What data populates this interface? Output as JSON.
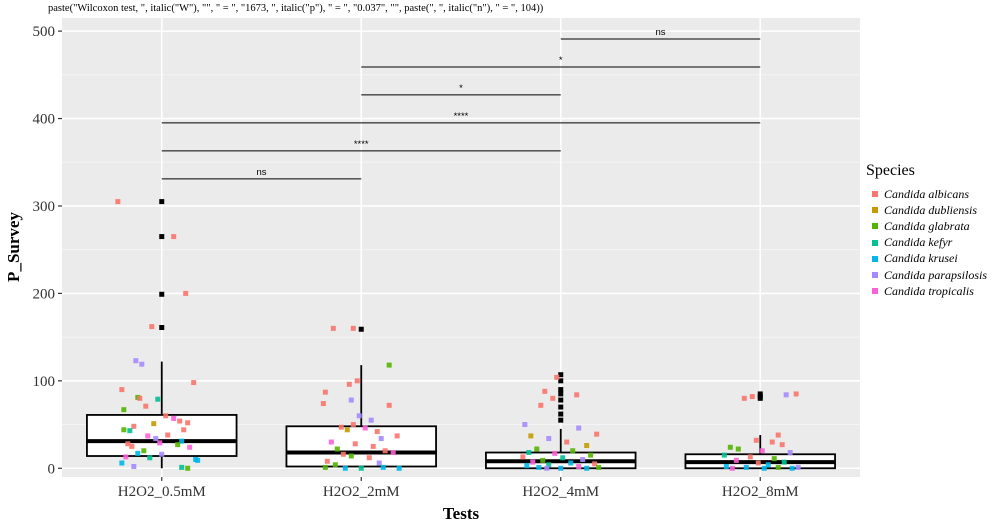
{
  "chart_data": {
    "type": "box",
    "subtitle": "paste(\"Wilcoxon test, \", italic(\"W\"), \"\", \" = \", \"1673, \", italic(\"p\"), \" = \", \"0.037\", \"\", paste(\", \", italic(\"n\"), \" = \", 104))",
    "xlabel": "Tests",
    "ylabel": "P_Survey",
    "ylim": [
      -10,
      515
    ],
    "yticks": [
      0,
      100,
      200,
      300,
      400,
      500
    ],
    "grid": true,
    "legend_placement": "right",
    "categories": [
      "H2O2_0.5mM",
      "H2O2_2mM",
      "H2O2_4mM",
      "H2O2_8mM"
    ],
    "boxes": [
      {
        "category": "H2O2_0.5mM",
        "min": 0,
        "q1": 14,
        "median": 31,
        "q3": 61,
        "max": 122,
        "outliers": [
          161,
          199,
          265,
          305
        ]
      },
      {
        "category": "H2O2_2mM",
        "min": 0,
        "q1": 2,
        "median": 18,
        "q3": 48,
        "max": 118,
        "outliers": [
          159
        ]
      },
      {
        "category": "H2O2_4mM",
        "min": 0,
        "q1": 0,
        "median": 8,
        "q3": 18,
        "max": 45,
        "outliers": [
          55,
          62,
          70,
          78,
          85,
          90,
          100,
          107
        ]
      },
      {
        "category": "H2O2_8mM",
        "min": 0,
        "q1": 0,
        "median": 7,
        "q3": 16,
        "max": 38,
        "outliers": [
          80,
          82,
          85
        ]
      }
    ],
    "legend": {
      "title": "Species",
      "entries": [
        {
          "name": "Candida albicans",
          "color": "#F8766D"
        },
        {
          "name": "Candida dubliensis",
          "color": "#C49A00"
        },
        {
          "name": "Candida glabrata",
          "color": "#53B400"
        },
        {
          "name": "Candida kefyr",
          "color": "#00C094"
        },
        {
          "name": "Candida krusei",
          "color": "#00B6EB"
        },
        {
          "name": "Candida parapsilosis",
          "color": "#A58AFF"
        },
        {
          "name": "Candida tropicalis",
          "color": "#FB61D7"
        }
      ]
    },
    "comparisons": [
      {
        "from": "H2O2_0.5mM",
        "to": "H2O2_2mM",
        "y": 331,
        "label": "ns"
      },
      {
        "from": "H2O2_0.5mM",
        "to": "H2O2_4mM",
        "y": 363,
        "label": "****"
      },
      {
        "from": "H2O2_0.5mM",
        "to": "H2O2_8mM",
        "y": 395,
        "label": "****"
      },
      {
        "from": "H2O2_2mM",
        "to": "H2O2_4mM",
        "y": 427,
        "label": "*"
      },
      {
        "from": "H2O2_2mM",
        "to": "H2O2_8mM",
        "y": 459,
        "label": "*"
      },
      {
        "from": "H2O2_4mM",
        "to": "H2O2_8mM",
        "y": 491,
        "label": "ns"
      }
    ],
    "points": [
      {
        "category": "H2O2_0.5mM",
        "jitter": -0.22,
        "y": 305,
        "species": 0
      },
      {
        "category": "H2O2_0.5mM",
        "jitter": 0.06,
        "y": 265,
        "species": 0
      },
      {
        "category": "H2O2_0.5mM",
        "jitter": 0.12,
        "y": 200,
        "species": 0
      },
      {
        "category": "H2O2_0.5mM",
        "jitter": -0.05,
        "y": 162,
        "species": 0
      },
      {
        "category": "H2O2_0.5mM",
        "jitter": -0.13,
        "y": 123,
        "species": 5
      },
      {
        "category": "H2O2_0.5mM",
        "jitter": -0.1,
        "y": 119,
        "species": 5
      },
      {
        "category": "H2O2_0.5mM",
        "jitter": 0.16,
        "y": 98,
        "species": 0
      },
      {
        "category": "H2O2_0.5mM",
        "jitter": -0.2,
        "y": 90,
        "species": 0
      },
      {
        "category": "H2O2_0.5mM",
        "jitter": -0.12,
        "y": 81,
        "species": 2
      },
      {
        "category": "H2O2_0.5mM",
        "jitter": -0.11,
        "y": 80,
        "species": 0
      },
      {
        "category": "H2O2_0.5mM",
        "jitter": -0.02,
        "y": 79,
        "species": 3
      },
      {
        "category": "H2O2_0.5mM",
        "jitter": -0.08,
        "y": 71,
        "species": 0
      },
      {
        "category": "H2O2_0.5mM",
        "jitter": -0.19,
        "y": 67,
        "species": 2
      },
      {
        "category": "H2O2_0.5mM",
        "jitter": 0.02,
        "y": 60,
        "species": 0
      },
      {
        "category": "H2O2_0.5mM",
        "jitter": 0.06,
        "y": 57,
        "species": 6
      },
      {
        "category": "H2O2_0.5mM",
        "jitter": 0.09,
        "y": 54,
        "species": 0
      },
      {
        "category": "H2O2_0.5mM",
        "jitter": 0.13,
        "y": 52,
        "species": 0
      },
      {
        "category": "H2O2_0.5mM",
        "jitter": -0.04,
        "y": 51,
        "species": 1
      },
      {
        "category": "H2O2_0.5mM",
        "jitter": -0.14,
        "y": 48,
        "species": 0
      },
      {
        "category": "H2O2_0.5mM",
        "jitter": -0.19,
        "y": 44,
        "species": 2
      },
      {
        "category": "H2O2_0.5mM",
        "jitter": -0.16,
        "y": 43,
        "species": 3
      },
      {
        "category": "H2O2_0.5mM",
        "jitter": 0.11,
        "y": 44,
        "species": 0
      },
      {
        "category": "H2O2_0.5mM",
        "jitter": 0.03,
        "y": 38,
        "species": 0
      },
      {
        "category": "H2O2_0.5mM",
        "jitter": -0.07,
        "y": 37,
        "species": 6
      },
      {
        "category": "H2O2_0.5mM",
        "jitter": -0.03,
        "y": 34,
        "species": 5
      },
      {
        "category": "H2O2_0.5mM",
        "jitter": 0.1,
        "y": 31,
        "species": 4
      },
      {
        "category": "H2O2_0.5mM",
        "jitter": -0.01,
        "y": 29,
        "species": 6
      },
      {
        "category": "H2O2_0.5mM",
        "jitter": -0.17,
        "y": 28,
        "species": 0
      },
      {
        "category": "H2O2_0.5mM",
        "jitter": 0.08,
        "y": 27,
        "species": 2
      },
      {
        "category": "H2O2_0.5mM",
        "jitter": -0.15,
        "y": 25,
        "species": 0
      },
      {
        "category": "H2O2_0.5mM",
        "jitter": 0.14,
        "y": 24,
        "species": 6
      },
      {
        "category": "H2O2_0.5mM",
        "jitter": -0.09,
        "y": 20,
        "species": 2
      },
      {
        "category": "H2O2_0.5mM",
        "jitter": -0.12,
        "y": 17,
        "species": 4
      },
      {
        "category": "H2O2_0.5mM",
        "jitter": 0.0,
        "y": 16,
        "species": 5
      },
      {
        "category": "H2O2_0.5mM",
        "jitter": -0.18,
        "y": 13,
        "species": 6
      },
      {
        "category": "H2O2_0.5mM",
        "jitter": -0.06,
        "y": 12,
        "species": 3
      },
      {
        "category": "H2O2_0.5mM",
        "jitter": 0.17,
        "y": 10,
        "species": 4
      },
      {
        "category": "H2O2_0.5mM",
        "jitter": 0.18,
        "y": 9,
        "species": 4
      },
      {
        "category": "H2O2_0.5mM",
        "jitter": -0.2,
        "y": 6,
        "species": 4
      },
      {
        "category": "H2O2_0.5mM",
        "jitter": -0.14,
        "y": 2,
        "species": 5
      },
      {
        "category": "H2O2_0.5mM",
        "jitter": 0.1,
        "y": 1,
        "species": 3
      },
      {
        "category": "H2O2_0.5mM",
        "jitter": 0.13,
        "y": 0,
        "species": 2
      },
      {
        "category": "H2O2_2mM",
        "jitter": -0.14,
        "y": 160,
        "species": 0
      },
      {
        "category": "H2O2_2mM",
        "jitter": -0.04,
        "y": 160,
        "species": 0
      },
      {
        "category": "H2O2_2mM",
        "jitter": 0.14,
        "y": 118,
        "species": 2
      },
      {
        "category": "H2O2_2mM",
        "jitter": -0.02,
        "y": 100,
        "species": 0
      },
      {
        "category": "H2O2_2mM",
        "jitter": -0.06,
        "y": 96,
        "species": 0
      },
      {
        "category": "H2O2_2mM",
        "jitter": -0.18,
        "y": 87,
        "species": 0
      },
      {
        "category": "H2O2_2mM",
        "jitter": -0.05,
        "y": 78,
        "species": 5
      },
      {
        "category": "H2O2_2mM",
        "jitter": -0.19,
        "y": 74,
        "species": 0
      },
      {
        "category": "H2O2_2mM",
        "jitter": 0.14,
        "y": 72,
        "species": 0
      },
      {
        "category": "H2O2_2mM",
        "jitter": -0.01,
        "y": 60,
        "species": 5
      },
      {
        "category": "H2O2_2mM",
        "jitter": 0.05,
        "y": 55,
        "species": 5
      },
      {
        "category": "H2O2_2mM",
        "jitter": -0.04,
        "y": 50,
        "species": 0
      },
      {
        "category": "H2O2_2mM",
        "jitter": -0.1,
        "y": 47,
        "species": 0
      },
      {
        "category": "H2O2_2mM",
        "jitter": 0.02,
        "y": 46,
        "species": 6
      },
      {
        "category": "H2O2_2mM",
        "jitter": -0.07,
        "y": 44,
        "species": 1
      },
      {
        "category": "H2O2_2mM",
        "jitter": 0.08,
        "y": 42,
        "species": 0
      },
      {
        "category": "H2O2_2mM",
        "jitter": 0.18,
        "y": 37,
        "species": 0
      },
      {
        "category": "H2O2_2mM",
        "jitter": 0.1,
        "y": 34,
        "species": 5
      },
      {
        "category": "H2O2_2mM",
        "jitter": -0.15,
        "y": 30,
        "species": 6
      },
      {
        "category": "H2O2_2mM",
        "jitter": -0.03,
        "y": 28,
        "species": 0
      },
      {
        "category": "H2O2_2mM",
        "jitter": 0.06,
        "y": 25,
        "species": 0
      },
      {
        "category": "H2O2_2mM",
        "jitter": -0.12,
        "y": 22,
        "species": 2
      },
      {
        "category": "H2O2_2mM",
        "jitter": 0.12,
        "y": 20,
        "species": 0
      },
      {
        "category": "H2O2_2mM",
        "jitter": 0.16,
        "y": 18,
        "species": 6
      },
      {
        "category": "H2O2_2mM",
        "jitter": -0.09,
        "y": 16,
        "species": 0
      },
      {
        "category": "H2O2_2mM",
        "jitter": -0.05,
        "y": 14,
        "species": 2
      },
      {
        "category": "H2O2_2mM",
        "jitter": 0.04,
        "y": 12,
        "species": 0
      },
      {
        "category": "H2O2_2mM",
        "jitter": -0.17,
        "y": 8,
        "species": 0
      },
      {
        "category": "H2O2_2mM",
        "jitter": 0.09,
        "y": 6,
        "species": 5
      },
      {
        "category": "H2O2_2mM",
        "jitter": -0.13,
        "y": 4,
        "species": 2
      },
      {
        "category": "H2O2_2mM",
        "jitter": -0.18,
        "y": 1,
        "species": 2
      },
      {
        "category": "H2O2_2mM",
        "jitter": -0.08,
        "y": 0,
        "species": 4
      },
      {
        "category": "H2O2_2mM",
        "jitter": 0.0,
        "y": 0,
        "species": 3
      },
      {
        "category": "H2O2_2mM",
        "jitter": 0.11,
        "y": 1,
        "species": 4
      },
      {
        "category": "H2O2_2mM",
        "jitter": 0.19,
        "y": 0,
        "species": 4
      },
      {
        "category": "H2O2_4mM",
        "jitter": -0.02,
        "y": 104,
        "species": 0
      },
      {
        "category": "H2O2_4mM",
        "jitter": -0.08,
        "y": 88,
        "species": 0
      },
      {
        "category": "H2O2_4mM",
        "jitter": 0.08,
        "y": 84,
        "species": 0
      },
      {
        "category": "H2O2_4mM",
        "jitter": -0.04,
        "y": 80,
        "species": 0
      },
      {
        "category": "H2O2_4mM",
        "jitter": -0.1,
        "y": 72,
        "species": 0
      },
      {
        "category": "H2O2_4mM",
        "jitter": -0.18,
        "y": 50,
        "species": 5
      },
      {
        "category": "H2O2_4mM",
        "jitter": 0.09,
        "y": 46,
        "species": 5
      },
      {
        "category": "H2O2_4mM",
        "jitter": 0.18,
        "y": 39,
        "species": 0
      },
      {
        "category": "H2O2_4mM",
        "jitter": -0.15,
        "y": 37,
        "species": 1
      },
      {
        "category": "H2O2_4mM",
        "jitter": -0.06,
        "y": 34,
        "species": 5
      },
      {
        "category": "H2O2_4mM",
        "jitter": 0.03,
        "y": 30,
        "species": 0
      },
      {
        "category": "H2O2_4mM",
        "jitter": 0.13,
        "y": 26,
        "species": 1
      },
      {
        "category": "H2O2_4mM",
        "jitter": -0.12,
        "y": 22,
        "species": 2
      },
      {
        "category": "H2O2_4mM",
        "jitter": 0.06,
        "y": 20,
        "species": 2
      },
      {
        "category": "H2O2_4mM",
        "jitter": -0.16,
        "y": 18,
        "species": 3
      },
      {
        "category": "H2O2_4mM",
        "jitter": -0.03,
        "y": 17,
        "species": 6
      },
      {
        "category": "H2O2_4mM",
        "jitter": 0.15,
        "y": 15,
        "species": 2
      },
      {
        "category": "H2O2_4mM",
        "jitter": -0.19,
        "y": 13,
        "species": 0
      },
      {
        "category": "H2O2_4mM",
        "jitter": 0.01,
        "y": 12,
        "species": 3
      },
      {
        "category": "H2O2_4mM",
        "jitter": 0.11,
        "y": 10,
        "species": 5
      },
      {
        "category": "H2O2_4mM",
        "jitter": -0.09,
        "y": 9,
        "species": 2
      },
      {
        "category": "H2O2_4mM",
        "jitter": -0.14,
        "y": 7,
        "species": 6
      },
      {
        "category": "H2O2_4mM",
        "jitter": 0.05,
        "y": 6,
        "species": 4
      },
      {
        "category": "H2O2_4mM",
        "jitter": 0.17,
        "y": 5,
        "species": 0
      },
      {
        "category": "H2O2_4mM",
        "jitter": -0.06,
        "y": 4,
        "species": 3
      },
      {
        "category": "H2O2_4mM",
        "jitter": -0.17,
        "y": 3,
        "species": 4
      },
      {
        "category": "H2O2_4mM",
        "jitter": 0.09,
        "y": 2,
        "species": 6
      },
      {
        "category": "H2O2_4mM",
        "jitter": -0.11,
        "y": 1,
        "species": 4
      },
      {
        "category": "H2O2_4mM",
        "jitter": 0.0,
        "y": 0,
        "species": 4
      },
      {
        "category": "H2O2_4mM",
        "jitter": 0.13,
        "y": 0,
        "species": 4
      },
      {
        "category": "H2O2_4mM",
        "jitter": -0.07,
        "y": 0,
        "species": 5
      },
      {
        "category": "H2O2_4mM",
        "jitter": 0.19,
        "y": 1,
        "species": 2
      },
      {
        "category": "H2O2_8mM",
        "jitter": -0.08,
        "y": 80,
        "species": 0
      },
      {
        "category": "H2O2_8mM",
        "jitter": 0.18,
        "y": 85,
        "species": 0
      },
      {
        "category": "H2O2_8mM",
        "jitter": 0.13,
        "y": 84,
        "species": 5
      },
      {
        "category": "H2O2_8mM",
        "jitter": -0.04,
        "y": 82,
        "species": 0
      },
      {
        "category": "H2O2_8mM",
        "jitter": 0.09,
        "y": 38,
        "species": 0
      },
      {
        "category": "H2O2_8mM",
        "jitter": -0.02,
        "y": 32,
        "species": 0
      },
      {
        "category": "H2O2_8mM",
        "jitter": 0.06,
        "y": 30,
        "species": 0
      },
      {
        "category": "H2O2_8mM",
        "jitter": 0.11,
        "y": 27,
        "species": 0
      },
      {
        "category": "H2O2_8mM",
        "jitter": -0.15,
        "y": 24,
        "species": 2
      },
      {
        "category": "H2O2_8mM",
        "jitter": -0.11,
        "y": 22,
        "species": 2
      },
      {
        "category": "H2O2_8mM",
        "jitter": 0.01,
        "y": 20,
        "species": 6
      },
      {
        "category": "H2O2_8mM",
        "jitter": 0.15,
        "y": 18,
        "species": 5
      },
      {
        "category": "H2O2_8mM",
        "jitter": -0.18,
        "y": 15,
        "species": 3
      },
      {
        "category": "H2O2_8mM",
        "jitter": -0.05,
        "y": 13,
        "species": 0
      },
      {
        "category": "H2O2_8mM",
        "jitter": 0.07,
        "y": 11,
        "species": 2
      },
      {
        "category": "H2O2_8mM",
        "jitter": -0.12,
        "y": 9,
        "species": 6
      },
      {
        "category": "H2O2_8mM",
        "jitter": 0.12,
        "y": 7,
        "species": 3
      },
      {
        "category": "H2O2_8mM",
        "jitter": -0.01,
        "y": 6,
        "species": 0
      },
      {
        "category": "H2O2_8mM",
        "jitter": 0.04,
        "y": 4,
        "species": 4
      },
      {
        "category": "H2O2_8mM",
        "jitter": -0.17,
        "y": 2,
        "species": 4
      },
      {
        "category": "H2O2_8mM",
        "jitter": -0.07,
        "y": 1,
        "species": 4
      },
      {
        "category": "H2O2_8mM",
        "jitter": 0.02,
        "y": 0,
        "species": 4
      },
      {
        "category": "H2O2_8mM",
        "jitter": 0.16,
        "y": 0,
        "species": 4
      },
      {
        "category": "H2O2_8mM",
        "jitter": 0.19,
        "y": 1,
        "species": 5
      },
      {
        "category": "H2O2_8mM",
        "jitter": -0.14,
        "y": 0,
        "species": 6
      },
      {
        "category": "H2O2_8mM",
        "jitter": 0.09,
        "y": 1,
        "species": 2
      }
    ]
  }
}
